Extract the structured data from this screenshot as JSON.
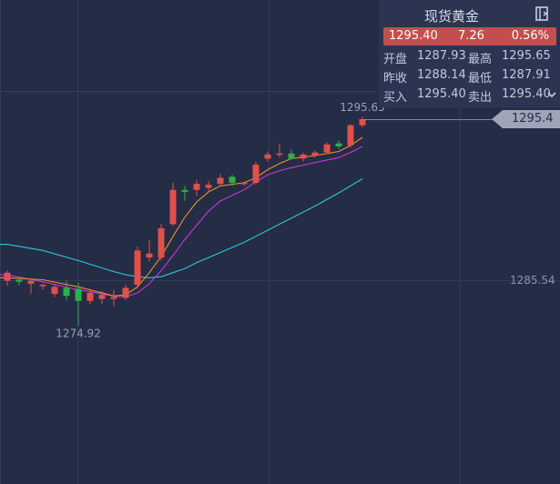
{
  "quote": {
    "title": "现货黄金",
    "price": "1295.40",
    "change": "7.26",
    "change_pct": "0.56%",
    "open_label": "开盘",
    "open": "1287.93",
    "high_label": "最高",
    "high": "1295.65",
    "prev_close_label": "昨收",
    "prev_close": "1288.14",
    "low_label": "最低",
    "low": "1287.91",
    "bid_label": "买入",
    "bid": "1295.40",
    "ask_label": "卖出",
    "ask": "1295.40"
  },
  "colors": {
    "up": "#e2504a",
    "down": "#2bb049",
    "ma_short": "#f0902e",
    "ma_mid": "#cc33dd",
    "ma_long": "#29c9d6",
    "background": "#252c45"
  },
  "icons": {
    "panel_toggle": "collapse-panel-icon",
    "dropdown": "chevron-down-icon"
  },
  "chart_data": {
    "type": "candlestick",
    "y_axis_labels": [
      "1295.4",
      "1285.54"
    ],
    "current_price": "1295.4",
    "max_marker": "1295.65",
    "min_marker": "1274.92",
    "candles": [
      {
        "o": 1279.4,
        "h": 1280.4,
        "l": 1278.9,
        "c": 1280.2
      },
      {
        "o": 1279.5,
        "h": 1279.8,
        "l": 1278.9,
        "c": 1279.3
      },
      {
        "o": 1279.1,
        "h": 1279.6,
        "l": 1278.1,
        "c": 1279.4
      },
      {
        "o": 1278.9,
        "h": 1279.1,
        "l": 1278.5,
        "c": 1279.0
      },
      {
        "o": 1278.1,
        "h": 1279.0,
        "l": 1277.8,
        "c": 1278.8
      },
      {
        "o": 1278.7,
        "h": 1279.4,
        "l": 1277.5,
        "c": 1277.9
      },
      {
        "o": 1278.6,
        "h": 1279.2,
        "l": 1274.92,
        "c": 1277.4
      },
      {
        "o": 1277.4,
        "h": 1278.6,
        "l": 1277.1,
        "c": 1278.2
      },
      {
        "o": 1277.6,
        "h": 1278.4,
        "l": 1277.1,
        "c": 1278.0
      },
      {
        "o": 1277.6,
        "h": 1278.5,
        "l": 1276.9,
        "c": 1277.8
      },
      {
        "o": 1277.7,
        "h": 1279.0,
        "l": 1277.5,
        "c": 1278.7
      },
      {
        "o": 1279.0,
        "h": 1282.8,
        "l": 1278.6,
        "c": 1282.4
      },
      {
        "o": 1281.7,
        "h": 1283.4,
        "l": 1281.3,
        "c": 1282.1
      },
      {
        "o": 1281.7,
        "h": 1285.0,
        "l": 1281.4,
        "c": 1284.6
      },
      {
        "o": 1285.0,
        "h": 1289.1,
        "l": 1284.8,
        "c": 1288.4
      },
      {
        "o": 1288.4,
        "h": 1288.8,
        "l": 1287.3,
        "c": 1288.2
      },
      {
        "o": 1288.4,
        "h": 1289.4,
        "l": 1287.8,
        "c": 1289.0
      },
      {
        "o": 1288.6,
        "h": 1289.3,
        "l": 1288.3,
        "c": 1288.9
      },
      {
        "o": 1289.0,
        "h": 1290.0,
        "l": 1288.8,
        "c": 1289.6
      },
      {
        "o": 1289.7,
        "h": 1289.9,
        "l": 1288.8,
        "c": 1289.1
      },
      {
        "o": 1289.0,
        "h": 1289.2,
        "l": 1288.8,
        "c": 1289.1
      },
      {
        "o": 1289.1,
        "h": 1291.2,
        "l": 1288.9,
        "c": 1290.9
      },
      {
        "o": 1291.5,
        "h": 1292.2,
        "l": 1291.2,
        "c": 1291.9
      },
      {
        "o": 1291.9,
        "h": 1293.0,
        "l": 1291.6,
        "c": 1292.0
      },
      {
        "o": 1292.0,
        "h": 1292.4,
        "l": 1291.4,
        "c": 1291.5
      },
      {
        "o": 1291.5,
        "h": 1292.1,
        "l": 1291.2,
        "c": 1291.9
      },
      {
        "o": 1291.8,
        "h": 1292.3,
        "l": 1291.6,
        "c": 1292.1
      },
      {
        "o": 1292.1,
        "h": 1293.1,
        "l": 1292.0,
        "c": 1292.9
      },
      {
        "o": 1293.0,
        "h": 1293.3,
        "l": 1292.4,
        "c": 1292.7
      },
      {
        "o": 1292.8,
        "h": 1294.9,
        "l": 1292.6,
        "c": 1294.8
      },
      {
        "o": 1294.8,
        "h": 1295.65,
        "l": 1294.6,
        "c": 1295.4
      }
    ],
    "ma_short": [
      [
        0,
        1279.7
      ],
      [
        3,
        1279.5
      ],
      [
        6,
        1278.8
      ],
      [
        9,
        1277.9
      ],
      [
        10,
        1278.0
      ],
      [
        11,
        1278.8
      ],
      [
        12,
        1280.2
      ],
      [
        13,
        1281.8
      ],
      [
        14,
        1283.8
      ],
      [
        15,
        1285.7
      ],
      [
        16,
        1287.2
      ],
      [
        17,
        1288.2
      ],
      [
        18,
        1288.8
      ],
      [
        20,
        1289.1
      ],
      [
        21,
        1289.6
      ],
      [
        22,
        1290.4
      ],
      [
        23,
        1291.0
      ],
      [
        24,
        1291.5
      ],
      [
        26,
        1291.8
      ],
      [
        28,
        1292.2
      ],
      [
        29,
        1292.8
      ],
      [
        30,
        1293.6
      ]
    ],
    "ma_mid": [
      [
        0,
        1280.0
      ],
      [
        3,
        1279.3
      ],
      [
        6,
        1278.5
      ],
      [
        9,
        1277.9
      ],
      [
        10,
        1277.8
      ],
      [
        11,
        1278.2
      ],
      [
        12,
        1279.1
      ],
      [
        13,
        1280.4
      ],
      [
        14,
        1281.9
      ],
      [
        15,
        1283.5
      ],
      [
        16,
        1284.9
      ],
      [
        17,
        1286.3
      ],
      [
        18,
        1287.3
      ],
      [
        20,
        1288.4
      ],
      [
        21,
        1289.2
      ],
      [
        22,
        1289.9
      ],
      [
        23,
        1290.3
      ],
      [
        24,
        1290.6
      ],
      [
        26,
        1291.1
      ],
      [
        28,
        1291.6
      ],
      [
        29,
        1292.1
      ],
      [
        30,
        1292.7
      ]
    ],
    "ma_long": [
      [
        0,
        1283.0
      ],
      [
        3,
        1282.4
      ],
      [
        6,
        1281.4
      ],
      [
        9,
        1280.3
      ],
      [
        10,
        1280.0
      ],
      [
        11,
        1279.8
      ],
      [
        12,
        1279.7
      ],
      [
        13,
        1279.8
      ],
      [
        14,
        1280.2
      ],
      [
        15,
        1280.6
      ],
      [
        16,
        1281.2
      ],
      [
        17,
        1281.7
      ],
      [
        18,
        1282.2
      ],
      [
        20,
        1283.2
      ],
      [
        21,
        1283.8
      ],
      [
        22,
        1284.4
      ],
      [
        23,
        1285.0
      ],
      [
        24,
        1285.6
      ],
      [
        26,
        1286.8
      ],
      [
        28,
        1288.1
      ],
      [
        29,
        1288.8
      ],
      [
        30,
        1289.5
      ]
    ],
    "grid": true
  }
}
